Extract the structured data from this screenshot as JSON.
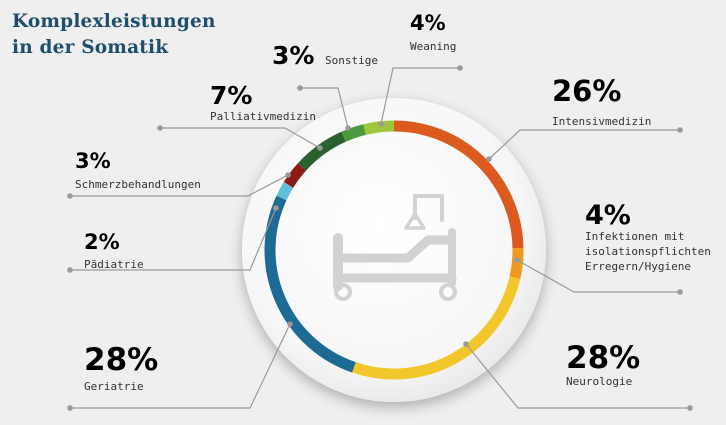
{
  "header": {
    "title_line1": "Komplexleistungen",
    "title_line2": "in der Somatik"
  },
  "icon": "hospital-bed-icon",
  "colors": {
    "background": "#efefef",
    "leader": "#9a9a9a",
    "bed_icon": "#d2d2d2"
  },
  "chart_data": {
    "type": "pie",
    "variant": "donut",
    "title": "Komplexleistungen in der Somatik",
    "unit": "%",
    "slices": [
      {
        "label": "Intensivmedizin",
        "value": 26,
        "display": "26%",
        "color": "#dd5a1f"
      },
      {
        "label": "Infektionen mit isolationspflichten Erregern/Hygiene",
        "label_lines": [
          "Infektionen mit",
          "isolationspflichten",
          "Erregern/Hygiene"
        ],
        "value": 4,
        "display": "4%",
        "color": "#ee9a1e"
      },
      {
        "label": "Neurologie",
        "value": 28,
        "display": "28%",
        "color": "#f2c72c"
      },
      {
        "label": "Geriatrie",
        "value": 28,
        "display": "28%",
        "color": "#1d6b95"
      },
      {
        "label": "Pädiatrie",
        "value": 2,
        "display": "2%",
        "color": "#63bfd9"
      },
      {
        "label": "Schmerzbehandlungen",
        "value": 3,
        "display": "3%",
        "color": "#8e1a14"
      },
      {
        "label": "Palliativmedizin",
        "value": 7,
        "display": "7%",
        "color": "#2a6131"
      },
      {
        "label": "Sonstige",
        "value": 3,
        "display": "3%",
        "color": "#4a9a3c"
      },
      {
        "label": "Weaning",
        "value": 4,
        "display": "4%",
        "color": "#9ec63d"
      }
    ]
  }
}
